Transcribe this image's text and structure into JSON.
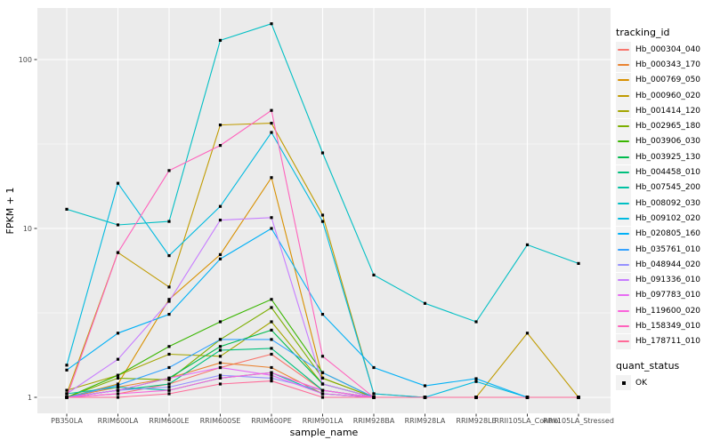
{
  "figure": {
    "x_axis_title": "sample_name",
    "y_axis_title": "FPKM + 1"
  },
  "legend": {
    "tracking_title": "tracking_id",
    "quant_title": "quant_status",
    "quant_items": [
      {
        "label": "OK"
      }
    ]
  },
  "chart_data": {
    "type": "line",
    "title": "",
    "xlabel": "sample_name",
    "ylabel": "FPKM + 1",
    "y_scale": "log10",
    "y_ticks": [
      1,
      10,
      100
    ],
    "y_tick_labels": [
      "1",
      "10",
      "100"
    ],
    "y_minor_ticks": [
      3.162,
      31.62
    ],
    "ylim": [
      0.8,
      200
    ],
    "grid": true,
    "legend_position": "right",
    "panel_background": "#EBEBEB",
    "gridline_color": "#FFFFFF",
    "point_shape": "filled-black-square",
    "quant_status_label": "OK",
    "categories": [
      "PB350LA",
      "RRIM600LA",
      "RRIM600LE",
      "RRIM600SE",
      "RRIM600PE",
      "RRIM901LA",
      "RRIM928BA",
      "RRIM928LA",
      "RRIM928LE",
      "RRII105LA_Control",
      "RRII105LA_Stressed"
    ],
    "series": [
      {
        "name": "Hb_000304_040",
        "color": "#F8766D",
        "values": [
          1.0,
          1.05,
          1.2,
          1.5,
          1.8,
          1.1,
          1.0,
          1.0,
          1.0,
          1.0,
          1.0
        ]
      },
      {
        "name": "Hb_000343_170",
        "color": "#EA8331",
        "values": [
          1.0,
          1.15,
          1.3,
          1.6,
          1.5,
          1.05,
          1.0,
          1.0,
          1.0,
          1.0,
          1.0
        ]
      },
      {
        "name": "Hb_000769_050",
        "color": "#D89000",
        "values": [
          1.0,
          1.2,
          3.8,
          7.0,
          20.0,
          1.3,
          1.0,
          1.0,
          1.0,
          1.0,
          1.0
        ]
      },
      {
        "name": "Hb_000960_020",
        "color": "#C09B00",
        "values": [
          1.05,
          7.2,
          4.5,
          41.0,
          42.0,
          12.0,
          1.05,
          1.0,
          1.0,
          2.4,
          1.0
        ]
      },
      {
        "name": "Hb_001414_120",
        "color": "#A3A500",
        "values": [
          1.1,
          1.35,
          1.8,
          1.75,
          2.8,
          1.2,
          1.0,
          1.0,
          1.0,
          1.0,
          1.0
        ]
      },
      {
        "name": "Hb_002965_180",
        "color": "#7CAE00",
        "values": [
          1.0,
          1.3,
          1.27,
          2.2,
          3.4,
          1.3,
          1.0,
          1.0,
          1.0,
          1.0,
          1.0
        ]
      },
      {
        "name": "Hb_003906_030",
        "color": "#39B600",
        "values": [
          1.0,
          1.35,
          2.0,
          2.8,
          3.8,
          1.4,
          1.0,
          1.0,
          1.0,
          1.0,
          1.0
        ]
      },
      {
        "name": "Hb_003925_130",
        "color": "#00BB4E",
        "values": [
          1.0,
          1.1,
          1.3,
          2.0,
          2.5,
          1.2,
          1.0,
          1.0,
          1.0,
          1.0,
          1.0
        ]
      },
      {
        "name": "Hb_004458_010",
        "color": "#00BF7D",
        "values": [
          1.0,
          1.1,
          1.2,
          1.9,
          1.95,
          1.1,
          1.0,
          1.0,
          1.0,
          1.0,
          1.0
        ]
      },
      {
        "name": "Hb_007545_200",
        "color": "#00C1A3",
        "values": [
          1.05,
          1.15,
          1.1,
          1.3,
          1.4,
          1.05,
          1.0,
          1.0,
          1.0,
          1.0,
          1.0
        ]
      },
      {
        "name": "Hb_008092_030",
        "color": "#00BFC4",
        "values": [
          13.0,
          10.5,
          11.0,
          130.0,
          163.0,
          28.0,
          5.3,
          3.6,
          2.8,
          8.0,
          6.2
        ]
      },
      {
        "name": "Hb_009102_020",
        "color": "#00BAE0",
        "values": [
          1.55,
          18.5,
          6.9,
          13.5,
          37.0,
          11.0,
          1.05,
          1.0,
          1.24,
          1.0,
          1.0
        ]
      },
      {
        "name": "Hb_020805_160",
        "color": "#00B0F6",
        "values": [
          1.45,
          2.4,
          3.1,
          6.6,
          10.0,
          3.1,
          1.5,
          1.17,
          1.29,
          1.0,
          1.0
        ]
      },
      {
        "name": "Hb_035761_010",
        "color": "#35A2FF",
        "values": [
          1.0,
          1.18,
          1.5,
          2.2,
          2.2,
          1.4,
          1.0,
          1.0,
          1.0,
          1.0,
          1.0
        ]
      },
      {
        "name": "Hb_048944_020",
        "color": "#9590FF",
        "values": [
          1.0,
          1.1,
          1.15,
          1.35,
          1.3,
          1.1,
          1.0,
          1.0,
          1.0,
          1.0,
          1.0
        ]
      },
      {
        "name": "Hb_091336_010",
        "color": "#C77CFF",
        "values": [
          1.05,
          1.68,
          3.7,
          11.2,
          11.6,
          1.2,
          1.0,
          1.0,
          1.0,
          1.0,
          1.0
        ]
      },
      {
        "name": "Hb_097783_010",
        "color": "#E76BF3",
        "values": [
          1.0,
          1.1,
          1.3,
          1.5,
          1.35,
          1.05,
          1.0,
          1.0,
          1.0,
          1.0,
          1.0
        ]
      },
      {
        "name": "Hb_119600_020",
        "color": "#FA62DB",
        "values": [
          1.0,
          1.05,
          1.1,
          1.3,
          1.4,
          1.1,
          1.0,
          1.0,
          1.0,
          1.0,
          1.0
        ]
      },
      {
        "name": "Hb_158349_010",
        "color": "#FF62BC",
        "values": [
          1.0,
          7.2,
          22.0,
          31.0,
          50.0,
          1.75,
          1.0,
          1.0,
          1.0,
          1.0,
          1.0
        ]
      },
      {
        "name": "Hb_178711_010",
        "color": "#FF6A98",
        "values": [
          1.0,
          1.0,
          1.05,
          1.2,
          1.25,
          1.0,
          1.0,
          1.0,
          1.0,
          1.0,
          1.0
        ]
      }
    ]
  }
}
